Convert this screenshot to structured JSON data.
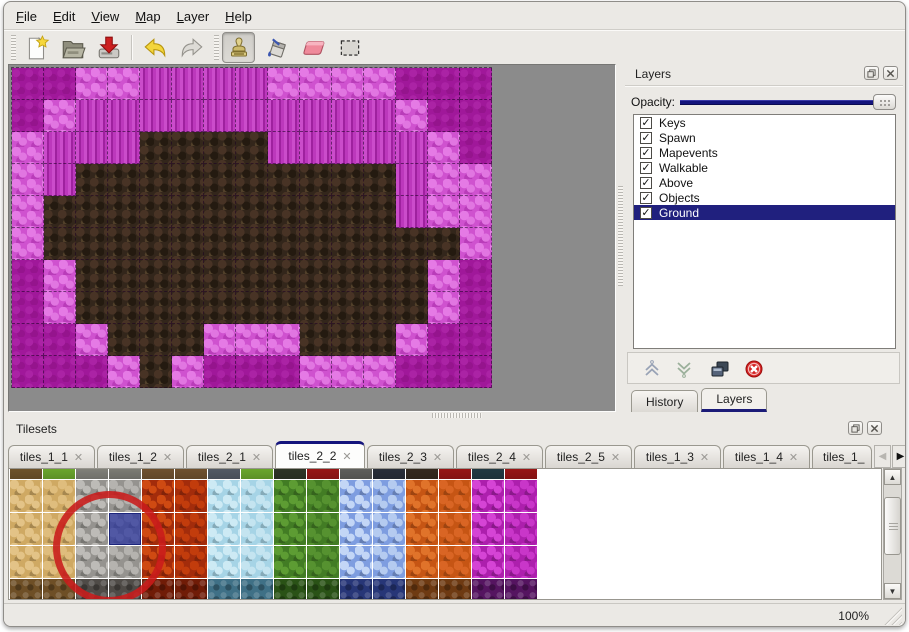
{
  "menu": {
    "items": [
      {
        "label": "File"
      },
      {
        "label": "Edit"
      },
      {
        "label": "View"
      },
      {
        "label": "Map"
      },
      {
        "label": "Layer"
      },
      {
        "label": "Help"
      }
    ]
  },
  "toolbar": {
    "icons": [
      "new-map-icon",
      "open-icon",
      "save-icon",
      "undo-icon",
      "redo-icon",
      "stamp-tool-icon",
      "fill-tool-icon",
      "eraser-tool-icon",
      "select-tool-icon"
    ],
    "active_tool": "stamp-tool"
  },
  "layers_panel": {
    "title": "Layers",
    "float_icon": "float-panel-icon",
    "close_icon": "close-panel-icon",
    "opacity_label": "Opacity:",
    "opacity_value": 100,
    "layers": [
      {
        "label": "Keys",
        "checked": true
      },
      {
        "label": "Spawn",
        "checked": true
      },
      {
        "label": "Mapevents",
        "checked": true
      },
      {
        "label": "Walkable",
        "checked": true
      },
      {
        "label": "Above",
        "checked": true
      },
      {
        "label": "Objects",
        "checked": true
      },
      {
        "label": "Ground",
        "checked": true
      }
    ],
    "selected_layer": "Ground",
    "buttons": [
      "move-layer-up-icon",
      "move-layer-down-icon",
      "duplicate-layer-icon",
      "delete-layer-icon"
    ],
    "dock_tabs": [
      {
        "label": "History",
        "active": false
      },
      {
        "label": "Layers",
        "active": true
      }
    ]
  },
  "tilesets_panel": {
    "title": "Tilesets",
    "tabs": [
      {
        "label": "tiles_1_1",
        "active": false
      },
      {
        "label": "tiles_1_2",
        "active": false
      },
      {
        "label": "tiles_2_1",
        "active": false
      },
      {
        "label": "tiles_2_2",
        "active": true
      },
      {
        "label": "tiles_2_3",
        "active": false
      },
      {
        "label": "tiles_2_4",
        "active": false
      },
      {
        "label": "tiles_2_5",
        "active": false
      },
      {
        "label": "tiles_1_3",
        "active": false
      },
      {
        "label": "tiles_1_4",
        "active": false
      },
      {
        "label": "tiles_1_",
        "active": false
      }
    ],
    "scroll_left_icon": "◀",
    "scroll_right_icon": "▶"
  },
  "map": {
    "tile_size": 32,
    "cols": 15,
    "rows": 10,
    "legend": {
      "P": "bright-pink-scales",
      "M": "magenta-pillars",
      "D": "dark-magenta-rock",
      "B": "brown-cave-ground"
    },
    "colors": {
      "P": "#cf52cf",
      "M": "#b52eb5",
      "D": "#a0189a",
      "B": "#33261b"
    },
    "grid": [
      "DDPPMMMMPPPPDDD",
      "DPMMMMMMMMMMPDD",
      "PMMMBBBBMMMMMPD",
      "PMBBBBBBBBBBMPP",
      "PBBBBBBBBBBBMPP",
      "PBBBBBBBBBBBBBP",
      "DPBBBBBBBBBBBPD",
      "DPBBBBBBBBBBBPD",
      "DDPBBBPPPBBBPDD",
      "DDDPBPDDDPPPDDD"
    ]
  },
  "tileset_palette": {
    "cell_size": 32,
    "selected": {
      "col": 3,
      "row": 2
    },
    "annotation": "red-circle-highlight",
    "columns": [
      {
        "id": "sand-a",
        "top": "#7a5c30",
        "base": "#cfa963",
        "blob": "#e3c387",
        "dark": "#6e4f26"
      },
      {
        "id": "sand-b",
        "top": "#76b832",
        "base": "#cfa963",
        "blob": "#dfbd7d",
        "dark": "#6e4f26"
      },
      {
        "id": "stone-a",
        "top": "#8f8f87",
        "base": "#95938f",
        "blob": "#bdbbb7",
        "dark": "#4f4b47"
      },
      {
        "id": "stone-b",
        "top": "#8a8a82",
        "base": "#95938f",
        "blob": "#b5b3af",
        "dark": "#4f4b47"
      },
      {
        "id": "lava-a",
        "top": "#7c5a34",
        "base": "#a32c0b",
        "blob": "#cf4a12",
        "dark": "#701c07"
      },
      {
        "id": "lava-b",
        "top": "#7c5a34",
        "base": "#a32c0b",
        "blob": "#c23c0c",
        "dark": "#701c07"
      },
      {
        "id": "ice-a",
        "top": "#5c6470",
        "base": "#a6d4e6",
        "blob": "#cdeaf4",
        "dark": "#3f7086"
      },
      {
        "id": "ice-b",
        "top": "#76b832",
        "base": "#a6d4e6",
        "blob": "#c4e4f0",
        "dark": "#3f7086"
      },
      {
        "id": "vine-a",
        "top": "#333b2a",
        "base": "#427c24",
        "blob": "#5d9c33",
        "dark": "#2a5216"
      },
      {
        "id": "vine-b",
        "top": "#a81818",
        "base": "#427c24",
        "blob": "#569230",
        "dark": "#2a5216"
      },
      {
        "id": "crystal-a",
        "top": "#6a6a66",
        "base": "#7e9de0",
        "blob": "#c3d6f6",
        "dark": "#273677"
      },
      {
        "id": "crystal-b",
        "top": "#2e3440",
        "base": "#7e9de0",
        "blob": "#b5cbf0",
        "dark": "#273677"
      },
      {
        "id": "orange-a",
        "top": "#3a2e22",
        "base": "#c65514",
        "blob": "#e0732a",
        "dark": "#6e3a12"
      },
      {
        "id": "orange-b",
        "top": "#a81818",
        "base": "#c65514",
        "blob": "#d96524",
        "dark": "#6e3a12"
      },
      {
        "id": "magenta-a",
        "top": "#25404a",
        "base": "#ad1fad",
        "blob": "#d544d5",
        "dark": "#551460"
      },
      {
        "id": "magenta-b",
        "top": "#a81818",
        "base": "#ad1fad",
        "blob": "#c936c9",
        "dark": "#551460"
      }
    ]
  },
  "status": {
    "zoom": "100%"
  },
  "colors": {
    "accent_navy": "#14147c",
    "selection_blue": "#2b35a0",
    "window_bg": "#ebe9e5",
    "canvas_bg": "#8b8b8b",
    "annotation_red": "#c91b1b"
  }
}
